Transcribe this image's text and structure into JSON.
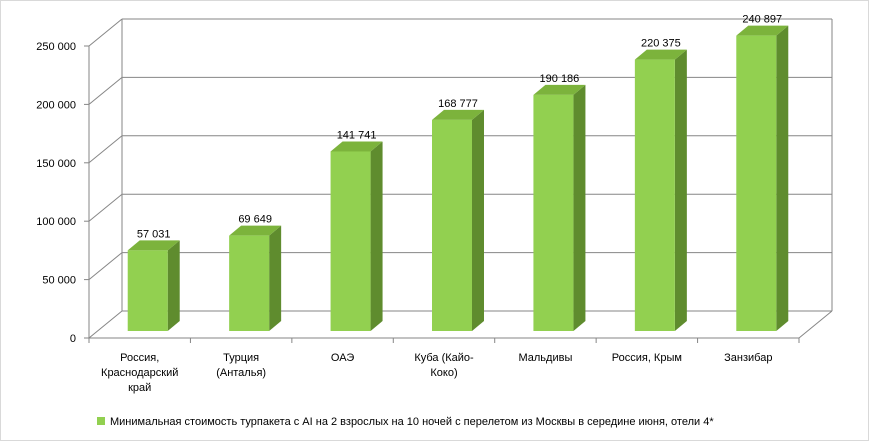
{
  "chart_data": {
    "type": "bar",
    "style": "3d-column",
    "categories": [
      [
        "Россия,",
        "Краснодарский",
        "край"
      ],
      [
        "Турция",
        "(Анталья)"
      ],
      [
        "ОАЭ"
      ],
      [
        "Куба (Кайо-",
        "Коко)"
      ],
      [
        "Мальдивы"
      ],
      [
        "Россия, Крым"
      ],
      [
        "Занзибар"
      ]
    ],
    "series": [
      {
        "name": "Минимальная стоимость турпакета с AI на 2 взрослых на 10 ночей с перелетом из Москвы в середине июня, отели 4*",
        "values": [
          57031,
          69649,
          141741,
          168777,
          190186,
          220375,
          240897
        ],
        "labels": [
          "57 031",
          "69 649",
          "141 741",
          "168 777",
          "190 186",
          "220 375",
          "240 897"
        ]
      }
    ],
    "ylim": [
      0,
      250000
    ],
    "yticks": [
      0,
      50000,
      100000,
      150000,
      200000,
      250000
    ],
    "ytick_labels": [
      "0",
      "50 000",
      "100 000",
      "150 000",
      "200 000",
      "250 000"
    ],
    "grid": true,
    "legend_position": "bottom",
    "colors": {
      "bar_front": "#92d050",
      "bar_side": "#5f8c2e",
      "bar_top": "#7cb33c",
      "grid": "#868686"
    }
  }
}
